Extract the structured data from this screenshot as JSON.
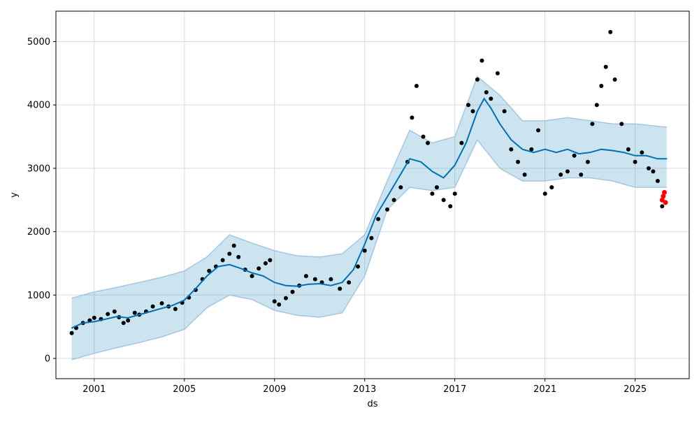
{
  "chart_data": {
    "type": "line",
    "title": "",
    "xlabel": "ds",
    "ylabel": "y",
    "grid": true,
    "legend": "none",
    "xlim": [
      1999.3,
      2027.4
    ],
    "ylim": [
      -320,
      5480
    ],
    "x_ticks": [
      2001,
      2005,
      2009,
      2013,
      2017,
      2021,
      2025
    ],
    "x_tick_labels": [
      "2001",
      "2005",
      "2009",
      "2013",
      "2017",
      "2021",
      "2025"
    ],
    "y_ticks": [
      0,
      1000,
      2000,
      3000,
      4000,
      5000
    ],
    "y_tick_labels": [
      "0",
      "1000",
      "2000",
      "3000",
      "4000",
      "5000"
    ],
    "colors": {
      "observed": "#000000",
      "forecast": "#0072B2",
      "interval": "#0072B2",
      "interval_line": "#A6C6E0",
      "test_points": "#FF0000",
      "grid": "#DCDCDC",
      "axis": "#000000"
    },
    "series": [
      {
        "kind": "observed",
        "x": [
          2000.0,
          2000.2,
          2000.5,
          2000.8,
          2001.0,
          2001.3,
          2001.6,
          2001.9,
          2002.1,
          2002.3,
          2002.5,
          2002.8,
          2003.0,
          2003.3,
          2003.6,
          2004.0,
          2004.3,
          2004.6,
          2004.9,
          2005.2,
          2005.5,
          2005.8,
          2006.1,
          2006.4,
          2006.7,
          2007.0,
          2007.2,
          2007.4,
          2007.7,
          2008.0,
          2008.3,
          2008.6,
          2008.8,
          2009.0,
          2009.2,
          2009.5,
          2009.8,
          2010.1,
          2010.4,
          2010.8,
          2011.1,
          2011.5,
          2011.9,
          2012.3,
          2012.7,
          2013.0,
          2013.3,
          2013.6,
          2014.0,
          2014.3,
          2014.6,
          2014.9,
          2015.1,
          2015.3,
          2015.6,
          2015.8,
          2016.0,
          2016.2,
          2016.5,
          2016.8,
          2017.0,
          2017.3,
          2017.6,
          2017.8,
          2018.0,
          2018.2,
          2018.4,
          2018.6,
          2018.9,
          2019.2,
          2019.5,
          2019.8,
          2020.1,
          2020.4,
          2020.7,
          2021.0,
          2021.3,
          2021.7,
          2022.0,
          2022.3,
          2022.6,
          2022.9,
          2023.1,
          2023.3,
          2023.5,
          2023.7,
          2023.9,
          2024.1,
          2024.4,
          2024.7,
          2025.0,
          2025.3,
          2025.6,
          2025.8,
          2026.0,
          2026.2
        ],
        "y": [
          400,
          480,
          560,
          600,
          640,
          620,
          700,
          740,
          650,
          560,
          600,
          720,
          690,
          740,
          820,
          870,
          820,
          780,
          880,
          960,
          1080,
          1250,
          1380,
          1450,
          1550,
          1650,
          1780,
          1600,
          1400,
          1300,
          1420,
          1500,
          1550,
          900,
          850,
          950,
          1050,
          1150,
          1300,
          1250,
          1200,
          1250,
          1100,
          1200,
          1450,
          1700,
          1900,
          2200,
          2350,
          2500,
          2700,
          3100,
          3800,
          4300,
          3500,
          3400,
          2600,
          2700,
          2500,
          2400,
          2600,
          3400,
          4000,
          3900,
          4400,
          4700,
          4200,
          4100,
          4500,
          3900,
          3300,
          3100,
          2900,
          3300,
          3600,
          2600,
          2700,
          2900,
          2950,
          3200,
          2900,
          3100,
          3700,
          4000,
          4300,
          4600,
          5150,
          4400,
          3700,
          3300,
          3100,
          3250,
          3000,
          2950,
          2800,
          2400
        ],
        "names": [
          "observed-point-1",
          "observed-point-2",
          "observed-point-3",
          "observed-point-4",
          "observed-point-5",
          "observed-point-6",
          "observed-point-7",
          "observed-point-8",
          "observed-point-9",
          "observed-point-10",
          "observed-point-11",
          "observed-point-12",
          "observed-point-13",
          "observed-point-14",
          "observed-point-15",
          "observed-point-16",
          "observed-point-17",
          "observed-point-18",
          "observed-point-19",
          "observed-point-20",
          "observed-point-21",
          "observed-point-22",
          "observed-point-23",
          "observed-point-24",
          "observed-point-25",
          "observed-point-26",
          "observed-point-27",
          "observed-point-28",
          "observed-point-29",
          "observed-point-30",
          "observed-point-31",
          "observed-point-32",
          "observed-point-33",
          "observed-point-34",
          "observed-point-35",
          "observed-point-36",
          "observed-point-37",
          "observed-point-38",
          "observed-point-39",
          "observed-point-40",
          "observed-point-41",
          "observed-point-42",
          "observed-point-43",
          "observed-point-44",
          "observed-point-45",
          "observed-point-46",
          "observed-point-47",
          "observed-point-48",
          "observed-point-49",
          "observed-point-50",
          "observed-point-51",
          "observed-point-52",
          "observed-point-53",
          "observed-point-54",
          "observed-point-55",
          "observed-point-56",
          "observed-point-57",
          "observed-point-58",
          "observed-point-59",
          "observed-point-60",
          "observed-point-61",
          "observed-point-62",
          "observed-point-63",
          "observed-point-64",
          "observed-point-65",
          "observed-point-66",
          "observed-point-67",
          "observed-point-68",
          "observed-point-69",
          "observed-point-70",
          "observed-point-71",
          "observed-point-72",
          "observed-point-73",
          "observed-point-74",
          "observed-point-75",
          "observed-point-76",
          "observed-point-77",
          "observed-point-78",
          "observed-point-79",
          "observed-point-80",
          "observed-point-81",
          "observed-point-82",
          "observed-point-83",
          "observed-point-84",
          "observed-point-85",
          "observed-point-86",
          "observed-point-87",
          "observed-point-88",
          "observed-point-89",
          "observed-point-90",
          "observed-point-91",
          "observed-point-92",
          "observed-point-93",
          "observed-point-94",
          "observed-point-95",
          "observed-point-96"
        ]
      },
      {
        "kind": "forecast",
        "x": [
          2000.0,
          2000.5,
          2001.0,
          2001.5,
          2002.0,
          2002.5,
          2003.0,
          2003.5,
          2004.0,
          2004.5,
          2005.0,
          2005.5,
          2006.0,
          2006.5,
          2007.0,
          2007.5,
          2008.0,
          2008.5,
          2009.0,
          2009.5,
          2010.0,
          2010.5,
          2011.0,
          2011.5,
          2012.0,
          2012.5,
          2013.0,
          2013.5,
          2014.0,
          2014.5,
          2015.0,
          2015.5,
          2016.0,
          2016.5,
          2017.0,
          2017.5,
          2018.0,
          2018.3,
          2018.6,
          2019.0,
          2019.5,
          2020.0,
          2020.5,
          2021.0,
          2021.5,
          2022.0,
          2022.5,
          2023.0,
          2023.5,
          2024.0,
          2024.5,
          2025.0,
          2025.5,
          2026.0,
          2026.4
        ],
        "y": [
          480,
          560,
          580,
          620,
          660,
          640,
          690,
          740,
          790,
          840,
          920,
          1100,
          1300,
          1450,
          1480,
          1420,
          1350,
          1300,
          1200,
          1150,
          1140,
          1170,
          1180,
          1150,
          1200,
          1400,
          1800,
          2250,
          2550,
          2850,
          3150,
          3100,
          2950,
          2850,
          3050,
          3400,
          3900,
          4100,
          3950,
          3700,
          3450,
          3300,
          3250,
          3300,
          3250,
          3300,
          3230,
          3250,
          3300,
          3280,
          3250,
          3200,
          3200,
          3150,
          3150
        ],
        "names": [
          "forecast-point-1",
          "forecast-point-2",
          "forecast-point-3",
          "forecast-point-4",
          "forecast-point-5",
          "forecast-point-6",
          "forecast-point-7",
          "forecast-point-8",
          "forecast-point-9",
          "forecast-point-10",
          "forecast-point-11",
          "forecast-point-12",
          "forecast-point-13",
          "forecast-point-14",
          "forecast-point-15",
          "forecast-point-16",
          "forecast-point-17",
          "forecast-point-18",
          "forecast-point-19",
          "forecast-point-20",
          "forecast-point-21",
          "forecast-point-22",
          "forecast-point-23",
          "forecast-point-24",
          "forecast-point-25",
          "forecast-point-26",
          "forecast-point-27",
          "forecast-point-28",
          "forecast-point-29",
          "forecast-point-30",
          "forecast-point-31",
          "forecast-point-32",
          "forecast-point-33",
          "forecast-point-34",
          "forecast-point-35",
          "forecast-point-36",
          "forecast-point-37",
          "forecast-point-38",
          "forecast-point-39",
          "forecast-point-40",
          "forecast-point-41",
          "forecast-point-42",
          "forecast-point-43",
          "forecast-point-44",
          "forecast-point-45",
          "forecast-point-46",
          "forecast-point-47",
          "forecast-point-48",
          "forecast-point-49",
          "forecast-point-50",
          "forecast-point-51",
          "forecast-point-52",
          "forecast-point-53",
          "forecast-point-54",
          "forecast-point-55"
        ]
      },
      {
        "kind": "test_points",
        "x": [
          2026.2,
          2026.25,
          2026.3,
          2026.35
        ],
        "y": [
          2500,
          2560,
          2620,
          2460
        ],
        "names": [
          "test-point-1",
          "test-point-2",
          "test-point-3",
          "test-point-4"
        ]
      }
    ],
    "interval": {
      "x": [
        2000.0,
        2001.0,
        2002.0,
        2003.0,
        2004.0,
        2005.0,
        2006.0,
        2007.0,
        2008.0,
        2009.0,
        2010.0,
        2011.0,
        2012.0,
        2013.0,
        2014.0,
        2015.0,
        2016.0,
        2017.0,
        2018.0,
        2019.0,
        2020.0,
        2021.0,
        2022.0,
        2023.0,
        2024.0,
        2025.0,
        2026.4
      ],
      "upper": [
        950,
        1050,
        1120,
        1200,
        1280,
        1380,
        1600,
        1950,
        1820,
        1700,
        1620,
        1600,
        1650,
        1950,
        2800,
        3600,
        3400,
        3500,
        4450,
        4150,
        3750,
        3750,
        3800,
        3750,
        3700,
        3700,
        3650
      ],
      "lower": [
        -20,
        80,
        170,
        250,
        340,
        460,
        800,
        1000,
        930,
        760,
        680,
        650,
        720,
        1300,
        2350,
        2700,
        2650,
        2700,
        3450,
        3000,
        2800,
        2800,
        2850,
        2850,
        2800,
        2700,
        2700
      ]
    }
  }
}
